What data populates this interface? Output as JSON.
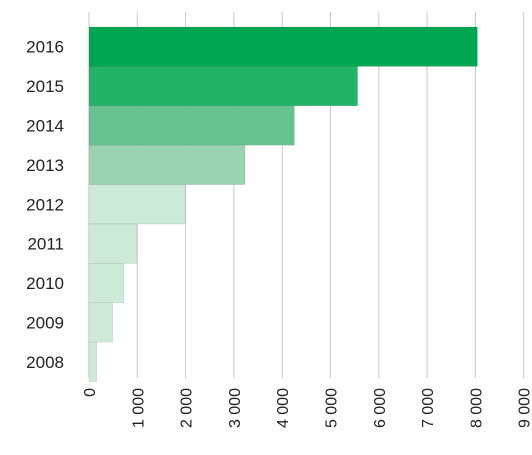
{
  "chart_data": {
    "type": "bar",
    "orientation": "horizontal",
    "title": "",
    "xlabel": "",
    "ylabel": "",
    "categories": [
      "2016",
      "2015",
      "2014",
      "2013",
      "2012",
      "2011",
      "2010",
      "2009",
      "2008"
    ],
    "values": [
      8040,
      5560,
      4250,
      3230,
      1990,
      990,
      720,
      490,
      160
    ],
    "xlim": [
      0,
      9000
    ],
    "x_ticks": [
      0,
      1000,
      2000,
      3000,
      4000,
      5000,
      6000,
      7000,
      8000,
      9000
    ],
    "x_tick_labels": [
      "0",
      "1 000",
      "2 000",
      "3 000",
      "4 000",
      "5 000",
      "6 000",
      "7 000",
      "8 000",
      "9 000"
    ],
    "grid": "vertical",
    "legend": "none",
    "bar_colors": [
      "#00a651",
      "#22b268",
      "#66c28f",
      "#9bd3b0",
      "#cde9d8",
      "#cde9d8",
      "#cde9d8",
      "#cde9d8",
      "#cde9d8"
    ],
    "grid_color": "#c8c8c8"
  }
}
